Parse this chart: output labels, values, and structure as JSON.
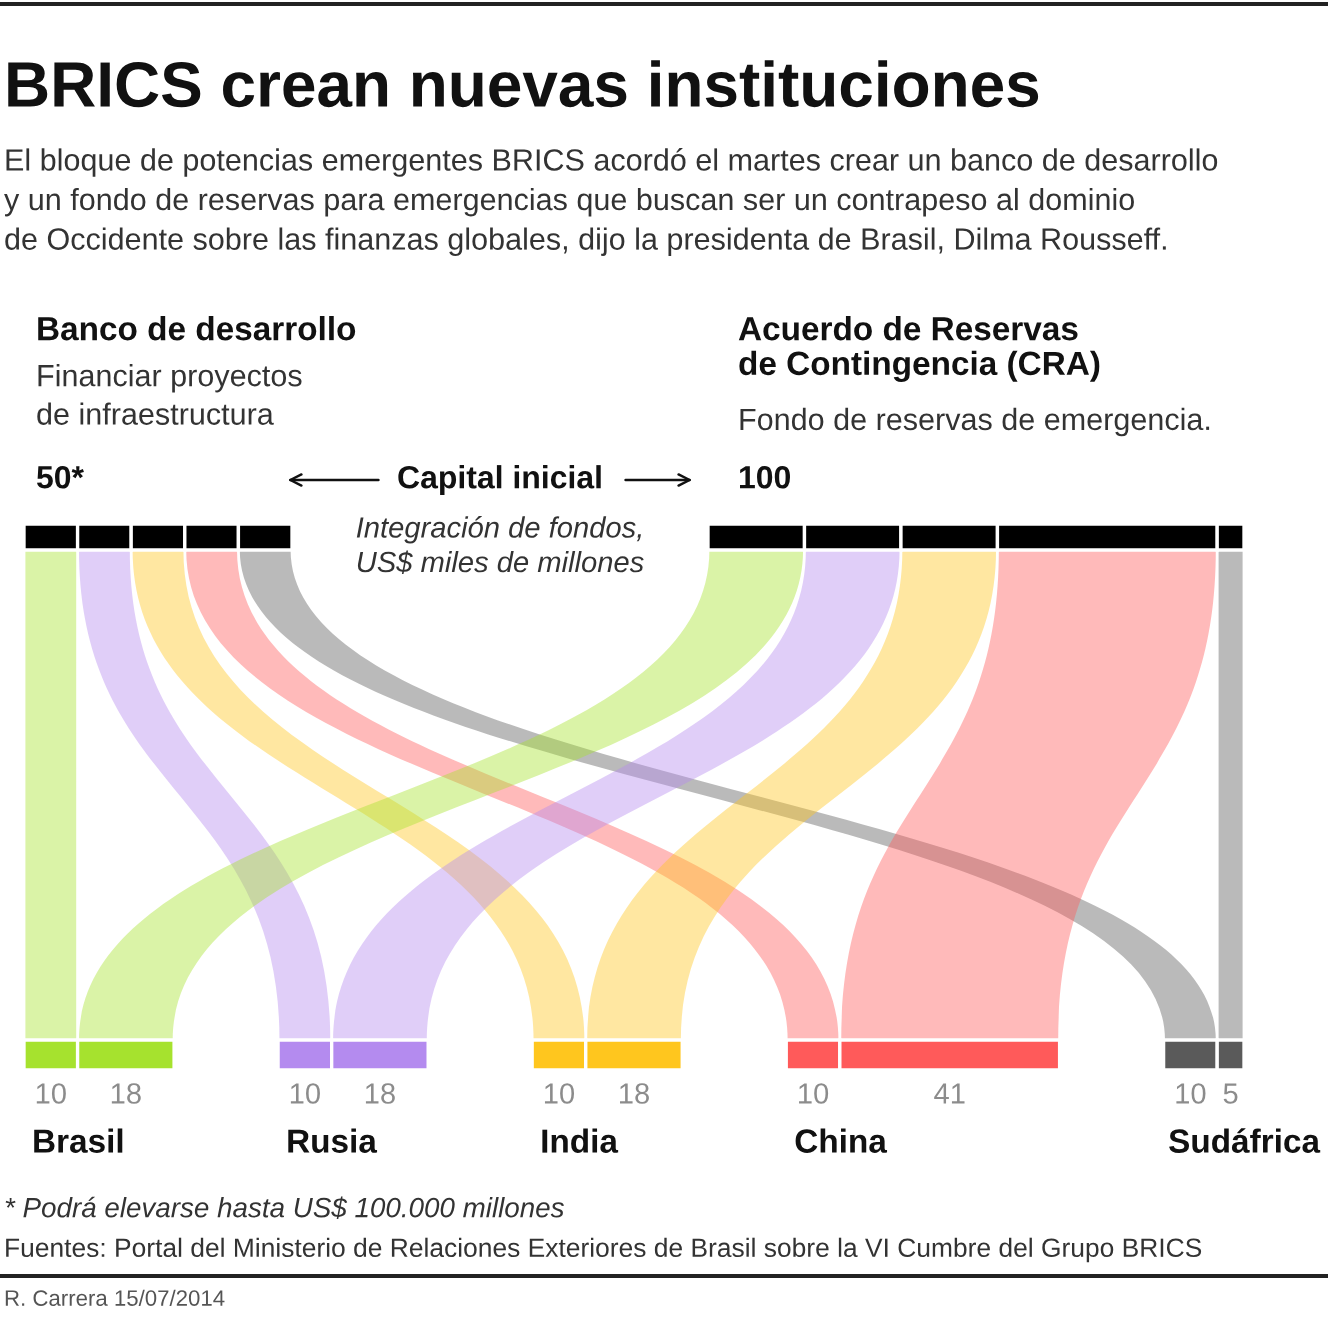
{
  "chart_data": {
    "type": "other",
    "title": "BRICS crean nuevas instituciones",
    "subtitle": "El bloque de potencias emergentes BRICS acordó el martes crear un banco de desarrollo\ny un fondo de reservas para emergencias que buscan ser un contrapeso al dominio\nde Occidente sobre las finanzas globales, dijo la presidenta de Brasil, Dilma Rousseff.",
    "categories": [
      "Brasil",
      "Rusia",
      "India",
      "China",
      "Sudáfrica"
    ],
    "colors": [
      "#a6e22e",
      "#b48bef",
      "#ffc61e",
      "#ff5a5a",
      "#5a5a5a"
    ],
    "series": [
      {
        "name": "Banco de desarrollo",
        "color": "#000000",
        "values": [
          10,
          10,
          10,
          10,
          10
        ]
      },
      {
        "name": "Acuerdo de Reservas\nde Contingencia (CRA)",
        "color": "#000000",
        "values": [
          18,
          18,
          18,
          41,
          5
        ]
      }
    ],
    "totals": [
      "50*",
      "100"
    ],
    "data_labels": true,
    "annotations": [
      "Financiar proyectos\nde infraestructura",
      "Fondo de reservas de emergencia.",
      "Capital inicial",
      "Integración de fondos,\nUS$ miles de millones",
      "* Podrá elevarse hasta US$ 100.000 millones",
      "Fuentes: Portal del Ministerio de Relaciones Exteriores de Brasil sobre la VI Cumbre del Grupo BRICS",
      "R. Carrera 15/07/2014"
    ]
  }
}
